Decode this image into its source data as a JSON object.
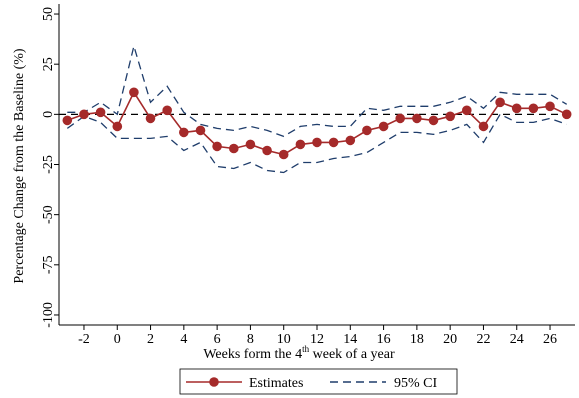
{
  "chart_data": {
    "type": "line",
    "title": "",
    "xlabel": "Weeks form the 4",
    "xlabel_superscript": "th",
    "xlabel_suffix": " week of a year",
    "ylabel": "Percentage Change from the Baseline (%)",
    "xlim": [
      -3.5,
      27.5
    ],
    "ylim": [
      -105,
      55
    ],
    "xticks": [
      -2,
      0,
      2,
      4,
      6,
      8,
      10,
      12,
      14,
      16,
      18,
      20,
      22,
      24,
      26
    ],
    "yticks": [
      50,
      25,
      0,
      -25,
      -50,
      -75,
      -100
    ],
    "reference_line": 0,
    "legend_position": "bottom-center",
    "x": [
      -3,
      -2,
      -1,
      0,
      1,
      2,
      3,
      4,
      5,
      6,
      7,
      8,
      9,
      10,
      11,
      12,
      13,
      14,
      15,
      16,
      17,
      18,
      19,
      20,
      21,
      22,
      23,
      24,
      25,
      26,
      27
    ],
    "series": [
      {
        "name": "Estimates",
        "color": "#a52a2a",
        "style": "solid-with-markers",
        "values": [
          -3,
          0,
          1,
          -6,
          11,
          -2,
          2,
          -9,
          -8,
          -16,
          -17,
          -15,
          -18,
          -20,
          -15,
          -14,
          -14,
          -13,
          -8,
          -6,
          -2,
          -2,
          -3,
          -1,
          2,
          -6,
          6,
          3,
          3,
          4,
          0
        ]
      },
      {
        "name": "95% CI",
        "color": "#1f3d6b",
        "style": "dashed",
        "upper": [
          1,
          1,
          6,
          0,
          34,
          6,
          14,
          1,
          -5,
          -7,
          -8,
          -6,
          -8,
          -11,
          -6,
          -5,
          -6,
          -6,
          3,
          2,
          4,
          4,
          4,
          6,
          9,
          3,
          11,
          10,
          10,
          10,
          5
        ],
        "lower": [
          -7,
          -1,
          -4,
          -12,
          -12,
          -12,
          -11,
          -18,
          -14,
          -26,
          -27,
          -24,
          -28,
          -29,
          -24,
          -24,
          -22,
          -21,
          -19,
          -14,
          -9,
          -9,
          -10,
          -8,
          -5,
          -14,
          0,
          -4,
          -4,
          -2,
          -5
        ]
      }
    ]
  }
}
